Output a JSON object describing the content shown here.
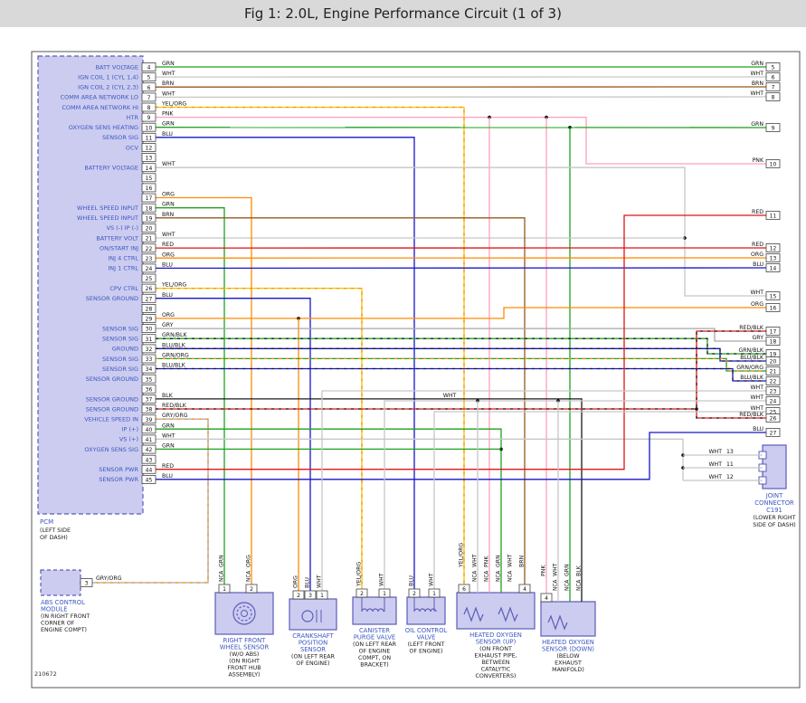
{
  "title": "Fig 1: 2.0L, Engine Performance Circuit (1 of 3)",
  "diagram_number": "210672",
  "nca_text": "NCA",
  "bus_label": "WHT",
  "colors": {
    "GRN": "#1fa11f",
    "WHT": "#c6c6c6",
    "BRN": "#96591e",
    "YEL": "#f0c400",
    "PNK": "#ff9fbf",
    "BLU": "#1616c8",
    "ORG": "#ff8a00",
    "RED": "#e01414",
    "GRY": "#a6a6a6",
    "BLK": "#1a1a1a"
  },
  "ui": {
    "blue_label": "#3b57c0",
    "black_label": "#1a1a1a",
    "wire_label": "#111111",
    "component_fill": "#ccccf0",
    "component_stroke": "#5c5cb8",
    "pin_box_fill": "#ffffff",
    "pin_box_stroke": "#444444",
    "border": "#555555",
    "title_bg": "#d9d9d9"
  },
  "pcm": {
    "name": "PCM",
    "location_lines": [
      "(LEFT SIDE",
      "OF DASH)"
    ],
    "pins": [
      {
        "num": 4,
        "label": "BATT VOLTAGE",
        "color": "GRN"
      },
      {
        "num": 5,
        "label": "IGN COIL 1 (CYL 1,4)",
        "color": "WHT"
      },
      {
        "num": 6,
        "label": "IGN COIL 2 (CYL 2,3)",
        "color": "BRN"
      },
      {
        "num": 7,
        "label": "COMM AREA NETWORK LO",
        "color": "WHT"
      },
      {
        "num": 8,
        "label": "COMM AREA NETWORK HI",
        "color": "YEL/ORG"
      },
      {
        "num": 9,
        "label": "HTR",
        "color": "PNK"
      },
      {
        "num": 10,
        "label": "OXYGEN SENS HEATING",
        "color": "GRN"
      },
      {
        "num": 11,
        "label": "SENSOR SIG",
        "color": "BLU"
      },
      {
        "num": 12,
        "label": "OCV",
        "color": ""
      },
      {
        "num": 13,
        "label": "",
        "color": ""
      },
      {
        "num": 14,
        "label": "BATTERY VOLTAGE",
        "color": "WHT"
      },
      {
        "num": 15,
        "label": "",
        "color": ""
      },
      {
        "num": 16,
        "label": "",
        "color": ""
      },
      {
        "num": 17,
        "label": "",
        "color": "ORG"
      },
      {
        "num": 18,
        "label": "WHEEL SPEED INPUT",
        "color": "GRN"
      },
      {
        "num": 19,
        "label": "WHEEL SPEED INPUT",
        "color": "BRN"
      },
      {
        "num": 20,
        "label": "VS (-) IP (-)",
        "color": ""
      },
      {
        "num": 21,
        "label": "BATTERY VOLT",
        "color": "WHT"
      },
      {
        "num": 22,
        "label": "ON/START INJ",
        "color": "RED"
      },
      {
        "num": 23,
        "label": "INJ 4 CTRL",
        "color": "ORG"
      },
      {
        "num": 24,
        "label": "INJ 1 CTRL",
        "color": "BLU"
      },
      {
        "num": 25,
        "label": "",
        "color": ""
      },
      {
        "num": 26,
        "label": "CPV CTRL",
        "color": "YEL/ORG"
      },
      {
        "num": 27,
        "label": "SENSOR GROUND",
        "color": "BLU"
      },
      {
        "num": 28,
        "label": "",
        "color": ""
      },
      {
        "num": 29,
        "label": "",
        "color": "ORG"
      },
      {
        "num": 30,
        "label": "SENSOR SIG",
        "color": "GRY"
      },
      {
        "num": 31,
        "label": "SENSOR SIG",
        "color": "GRN/BLK"
      },
      {
        "num": 32,
        "label": "GROUND",
        "color": "BLU/BLK"
      },
      {
        "num": 33,
        "label": "SENSOR SIG",
        "color": "GRN/ORG"
      },
      {
        "num": 34,
        "label": "SENSOR SIG",
        "color": "BLU/BLK"
      },
      {
        "num": 35,
        "label": "SENSOR GROUND",
        "color": ""
      },
      {
        "num": 36,
        "label": "",
        "color": ""
      },
      {
        "num": 37,
        "label": "SENSOR GROUND",
        "color": "BLK"
      },
      {
        "num": 38,
        "label": "SENSOR GROUND",
        "color": "RED/BLK"
      },
      {
        "num": 39,
        "label": "VEHICLE SPEED IN",
        "color": "GRY/ORG"
      },
      {
        "num": 40,
        "label": "IP (+)",
        "color": "GRN"
      },
      {
        "num": 41,
        "label": "VS (+)",
        "color": "WHT"
      },
      {
        "num": 42,
        "label": "OXYGEN SENS SIG",
        "color": "GRN"
      },
      {
        "num": 43,
        "label": "",
        "color": ""
      },
      {
        "num": 44,
        "label": "SENSOR PWR",
        "color": "RED"
      },
      {
        "num": 45,
        "label": "SENSOR PWR",
        "color": "BLU"
      }
    ]
  },
  "right_pins": [
    {
      "num": 5,
      "color": "GRN"
    },
    {
      "num": 6,
      "color": "WHT"
    },
    {
      "num": 7,
      "color": "BRN"
    },
    {
      "num": 8,
      "color": "WHT"
    },
    {
      "num": 9,
      "color": "GRN"
    },
    {
      "num": 10,
      "color": "PNK"
    },
    {
      "num": 11,
      "color": "RED"
    },
    {
      "num": 12,
      "color": "RED"
    },
    {
      "num": 13,
      "color": "ORG"
    },
    {
      "num": 14,
      "color": "BLU"
    },
    {
      "num": 15,
      "color": "WHT"
    },
    {
      "num": 16,
      "color": "ORG"
    },
    {
      "num": 17,
      "color": "RED/BLK"
    },
    {
      "num": 18,
      "color": "GRY"
    },
    {
      "num": 19,
      "color": "GRN/BLK"
    },
    {
      "num": 20,
      "color": "BLU/BLK"
    },
    {
      "num": 21,
      "color": "GRN/ORG"
    },
    {
      "num": 22,
      "color": "BLU/BLK"
    },
    {
      "num": 23,
      "color": "WHT"
    },
    {
      "num": 24,
      "color": "WHT"
    },
    {
      "num": 25,
      "color": "WHT"
    },
    {
      "num": 26,
      "color": "RED/BLK"
    },
    {
      "num": 27,
      "color": "BLU"
    }
  ],
  "joint_connector": {
    "name_lines": [
      "JOINT",
      "CONNECTOR",
      "C191"
    ],
    "location_lines": [
      "(LOWER RIGHT",
      "SIDE OF DASH)"
    ],
    "pins": [
      {
        "num": "13",
        "color": "WHT"
      },
      {
        "num": "11",
        "color": "WHT"
      },
      {
        "num": "12",
        "color": "WHT"
      }
    ]
  },
  "abs_module": {
    "name_lines": [
      "ABS CONTROL",
      "MODULE"
    ],
    "location_lines": [
      "(IN RIGHT FRONT",
      "CORNER OF",
      "ENGINE COMPT)"
    ],
    "pins": [
      {
        "num": "3",
        "color": "GRY/ORG"
      }
    ]
  },
  "components": [
    {
      "id": "right-front-wheel-sensor",
      "name_lines": [
        "RIGHT FRONT",
        "WHEEL SENSOR"
      ],
      "location_lines": [
        "(W/O ABS)",
        "(ON RIGHT",
        "FRONT HUB",
        "ASSEMBLY)"
      ],
      "pins": [
        {
          "num": "1",
          "nca": true,
          "color": "GRN"
        },
        {
          "num": "2",
          "nca": true,
          "color": "ORG"
        }
      ]
    },
    {
      "id": "crankshaft-position-sensor",
      "name_lines": [
        "CRANKSHAFT",
        "POSITION",
        "SENSOR"
      ],
      "location_lines": [
        "(ON LEFT REAR",
        "OF ENGINE)"
      ],
      "pins": [
        {
          "num": "2",
          "color": "ORG"
        },
        {
          "num": "3",
          "color": "BLU"
        },
        {
          "num": "1",
          "color": "WHT"
        }
      ]
    },
    {
      "id": "canister-purge-valve",
      "name_lines": [
        "CANISTER",
        "PURGE VALVE"
      ],
      "location_lines": [
        "(ON LEFT REAR",
        "OF ENGINE",
        "COMPT, ON",
        "BRACKET)"
      ],
      "pins": [
        {
          "num": "2",
          "color": "YEL/ORG"
        },
        {
          "num": "1",
          "color": "WHT"
        }
      ]
    },
    {
      "id": "oil-control-valve",
      "name_lines": [
        "OIL CONTROL",
        "VALVE"
      ],
      "location_lines": [
        "(LEFT FRONT",
        "OF ENGINE)"
      ],
      "pins": [
        {
          "num": "2",
          "color": "BLU"
        },
        {
          "num": "1",
          "color": "WHT"
        }
      ]
    },
    {
      "id": "heated-oxygen-sensor-up",
      "name_lines": [
        "HEATED OXYGEN",
        "SENSOR (UP)"
      ],
      "location_lines": [
        "(ON FRONT",
        "EXHAUST PIPE,",
        "BETWEEN",
        "CATALYTIC",
        "CONVERTERS)"
      ],
      "pins": [
        {
          "num": "6",
          "color": "YEL/ORG"
        },
        {
          "nca": true,
          "color": "WHT"
        },
        {
          "nca": true,
          "color": "PNK"
        },
        {
          "nca": true,
          "color": "GRN"
        },
        {
          "nca": true,
          "color": "WHT"
        },
        {
          "num": "4",
          "color": "BRN"
        }
      ]
    },
    {
      "id": "heated-oxygen-sensor-down",
      "name_lines": [
        "HEATED OXYGEN",
        "SENSOR (DOWN)"
      ],
      "location_lines": [
        "(BELOW",
        "EXHAUST",
        "MANIFOLD)"
      ],
      "pins": [
        {
          "num": "4",
          "color": "PNK"
        },
        {
          "nca": true,
          "color": "WHT"
        },
        {
          "nca": true,
          "color": "GRN"
        },
        {
          "nca": true,
          "color": "BLK"
        }
      ]
    }
  ]
}
